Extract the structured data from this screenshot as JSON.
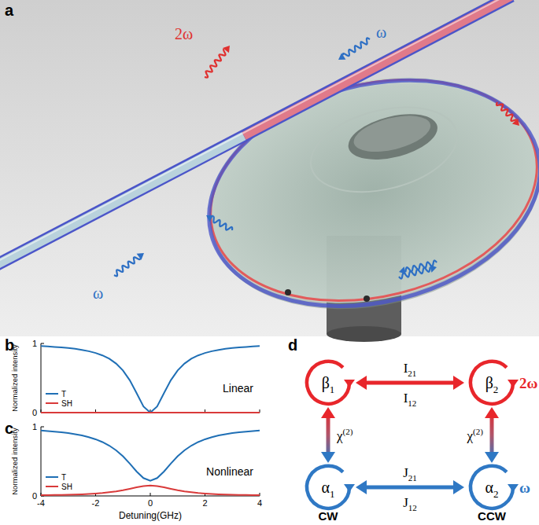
{
  "panel_labels": [
    "a",
    "b",
    "c",
    "d"
  ],
  "illustration": {
    "labels": [
      "2ω",
      "ω",
      "ω"
    ]
  },
  "chart_data": [
    {
      "type": "line",
      "annotation": "Linear",
      "y_label": "Normalized intensity",
      "x": [
        -4,
        -3.75,
        -3.5,
        -3.25,
        -3,
        -2.75,
        -2.5,
        -2.25,
        -2,
        -1.75,
        -1.5,
        -1.25,
        -1,
        -0.75,
        -0.5,
        -0.25,
        0,
        0.25,
        0.5,
        0.75,
        1,
        1.25,
        1.5,
        1.75,
        2,
        2.25,
        2.5,
        2.75,
        3,
        3.25,
        3.5,
        3.75,
        4
      ],
      "series": [
        {
          "name": "T",
          "color": "#1f6fb5",
          "values": [
            0.962,
            0.956,
            0.95,
            0.943,
            0.934,
            0.922,
            0.907,
            0.888,
            0.862,
            0.827,
            0.779,
            0.709,
            0.61,
            0.468,
            0.281,
            0.089,
            0,
            0.089,
            0.281,
            0.468,
            0.61,
            0.709,
            0.779,
            0.827,
            0.862,
            0.888,
            0.907,
            0.922,
            0.934,
            0.943,
            0.95,
            0.956,
            0.962
          ]
        },
        {
          "name": "SH",
          "color": "#d93a3a",
          "values": [
            0,
            0,
            0,
            0,
            0,
            0,
            0,
            0,
            0,
            0,
            0,
            0,
            0,
            0,
            0,
            0,
            0,
            0,
            0,
            0,
            0,
            0,
            0,
            0,
            0,
            0,
            0,
            0,
            0,
            0,
            0,
            0,
            0
          ]
        }
      ],
      "xlim": [
        -4,
        4
      ],
      "ylim": [
        0,
        1
      ],
      "xticks": [
        -4,
        -2,
        0,
        2,
        4
      ],
      "yticks": [
        0,
        1
      ],
      "tick_labels": "y",
      "legend": "lower left"
    },
    {
      "type": "line",
      "annotation": "Nonlinear",
      "y_label": "Normalized intensity",
      "x_label": "Detuning(GHz)",
      "x": [
        -4,
        -3.75,
        -3.5,
        -3.25,
        -3,
        -2.75,
        -2.5,
        -2.25,
        -2,
        -1.75,
        -1.5,
        -1.25,
        -1,
        -0.75,
        -0.5,
        -0.25,
        0,
        0.25,
        0.5,
        0.75,
        1,
        1.25,
        1.5,
        1.75,
        2,
        2.25,
        2.5,
        2.75,
        3,
        3.25,
        3.5,
        3.75,
        4
      ],
      "series": [
        {
          "name": "T",
          "color": "#1f6fb5",
          "values": [
            0.945,
            0.938,
            0.93,
            0.92,
            0.908,
            0.892,
            0.874,
            0.85,
            0.819,
            0.779,
            0.727,
            0.66,
            0.573,
            0.467,
            0.353,
            0.258,
            0.22,
            0.258,
            0.353,
            0.467,
            0.573,
            0.66,
            0.727,
            0.779,
            0.819,
            0.85,
            0.874,
            0.892,
            0.908,
            0.92,
            0.93,
            0.938,
            0.945
          ]
        },
        {
          "name": "SH",
          "color": "#d93a3a",
          "values": [
            0.011,
            0.012,
            0.013,
            0.015,
            0.018,
            0.021,
            0.024,
            0.029,
            0.035,
            0.042,
            0.053,
            0.065,
            0.082,
            0.102,
            0.124,
            0.143,
            0.15,
            0.143,
            0.124,
            0.102,
            0.082,
            0.065,
            0.053,
            0.042,
            0.035,
            0.029,
            0.024,
            0.021,
            0.018,
            0.015,
            0.013,
            0.012,
            0.011
          ]
        }
      ],
      "xlim": [
        -4,
        4
      ],
      "ylim": [
        0,
        1
      ],
      "xticks": [
        -4,
        -2,
        0,
        2,
        4
      ],
      "yticks": [
        0,
        1
      ],
      "legend": "lower left"
    }
  ],
  "diagram": {
    "nodes": [
      {
        "symbol": "β",
        "sub": "1"
      },
      {
        "symbol": "β",
        "sub": "2"
      },
      {
        "symbol": "α",
        "sub": "1"
      },
      {
        "symbol": "α",
        "sub": "2"
      }
    ],
    "row_labels": [
      "2ω",
      "ω"
    ],
    "column_labels": [
      "CW",
      "CCW"
    ],
    "horizontal_edges": [
      {
        "labels": [
          {
            "symbol": "I",
            "sub": "21"
          },
          {
            "symbol": "I",
            "sub": "12"
          }
        ]
      },
      {
        "labels": [
          {
            "symbol": "J",
            "sub": "21"
          },
          {
            "symbol": "J",
            "sub": "12"
          }
        ]
      }
    ],
    "vertical_edges": [
      {
        "label": {
          "symbol": "χ",
          "sup": "(2)"
        }
      },
      {
        "label": {
          "symbol": "χ",
          "sup": "(2)"
        }
      }
    ]
  }
}
